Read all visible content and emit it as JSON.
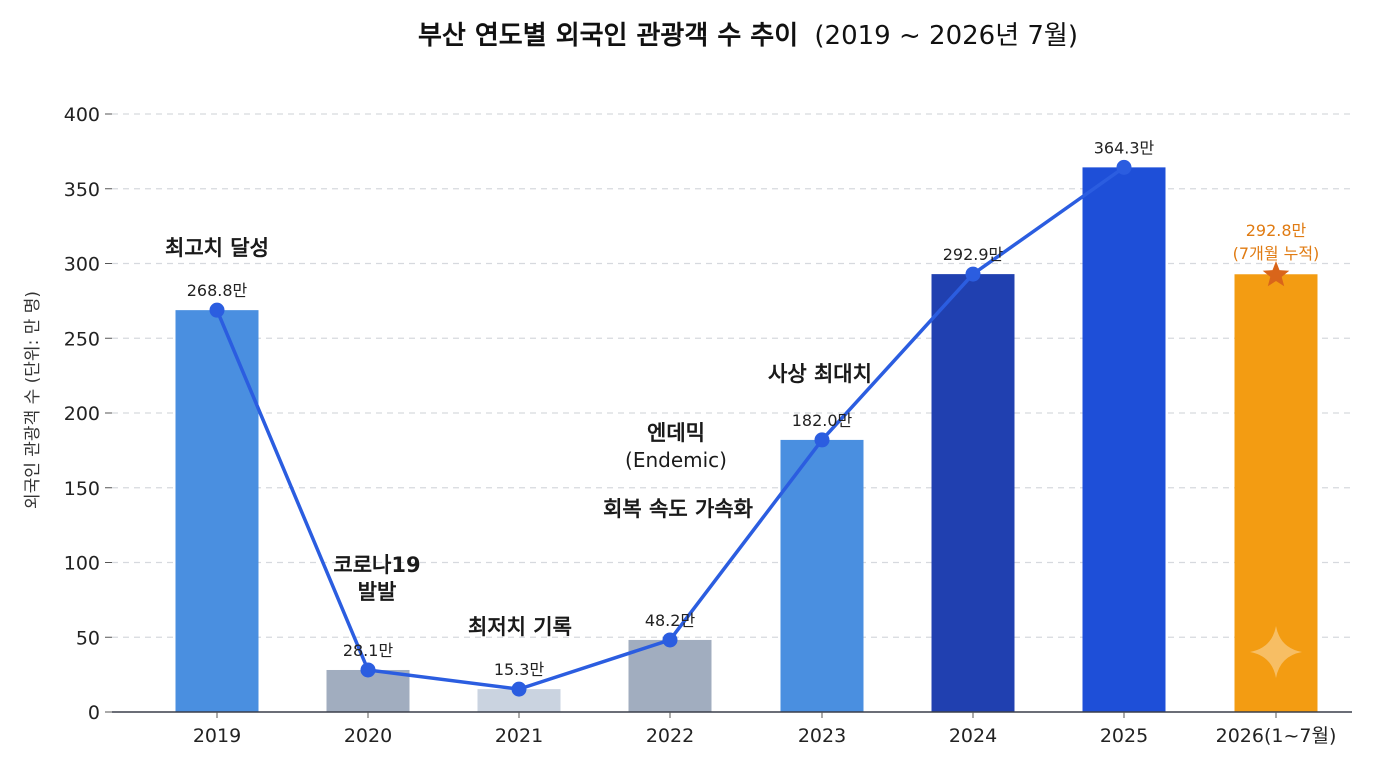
{
  "chart_data": {
    "type": "bar",
    "title_main": "부산 연도별 외국인 관광객 수 추이",
    "title_range": "(2019 ~ 2026년 7월)",
    "xlabel": "",
    "ylabel": "외국인 관광객 수 (단위: 만 명)",
    "ylim": [
      0,
      400
    ],
    "yticks": [
      0,
      50,
      100,
      150,
      200,
      250,
      300,
      350,
      400
    ],
    "grid": true,
    "categories": [
      "2019",
      "2020",
      "2021",
      "2022",
      "2023",
      "2024",
      "2025",
      "2026(1~7월)"
    ],
    "values": [
      268.8,
      28.1,
      15.3,
      48.2,
      182.0,
      292.9,
      364.3,
      292.8
    ],
    "value_labels": [
      "268.8만",
      "28.1만",
      "15.3만",
      "48.2만",
      "182.0만",
      "292.9만",
      "364.3만",
      "292.8만"
    ],
    "partial_note": "(7개월 누적)",
    "bar_colors": [
      "#4a8fe0",
      "#a1adbf",
      "#cad3e0",
      "#a1adbf",
      "#4a8fe0",
      "#2040b0",
      "#1e4fd8",
      "#f39c12"
    ],
    "line_color": "#2b5de0",
    "highlight_color": "#e07b12",
    "line_series_values": [
      268.8,
      28.1,
      15.3,
      48.2,
      182.0,
      292.9,
      364.3
    ],
    "annotations": [
      {
        "lines": [
          "최고치 달성"
        ],
        "category": "2019"
      },
      {
        "lines": [
          "코로나19",
          "발발"
        ],
        "category": "2020"
      },
      {
        "lines": [
          "최저치 기록"
        ],
        "category": "2021"
      },
      {
        "lines": [
          "엔데믹",
          "(Endemic)"
        ],
        "category": "2022"
      },
      {
        "lines": [
          "회복 속도 가속화"
        ],
        "category": "2022"
      },
      {
        "lines": [
          "사상 최대치"
        ],
        "category": "2023"
      }
    ]
  }
}
